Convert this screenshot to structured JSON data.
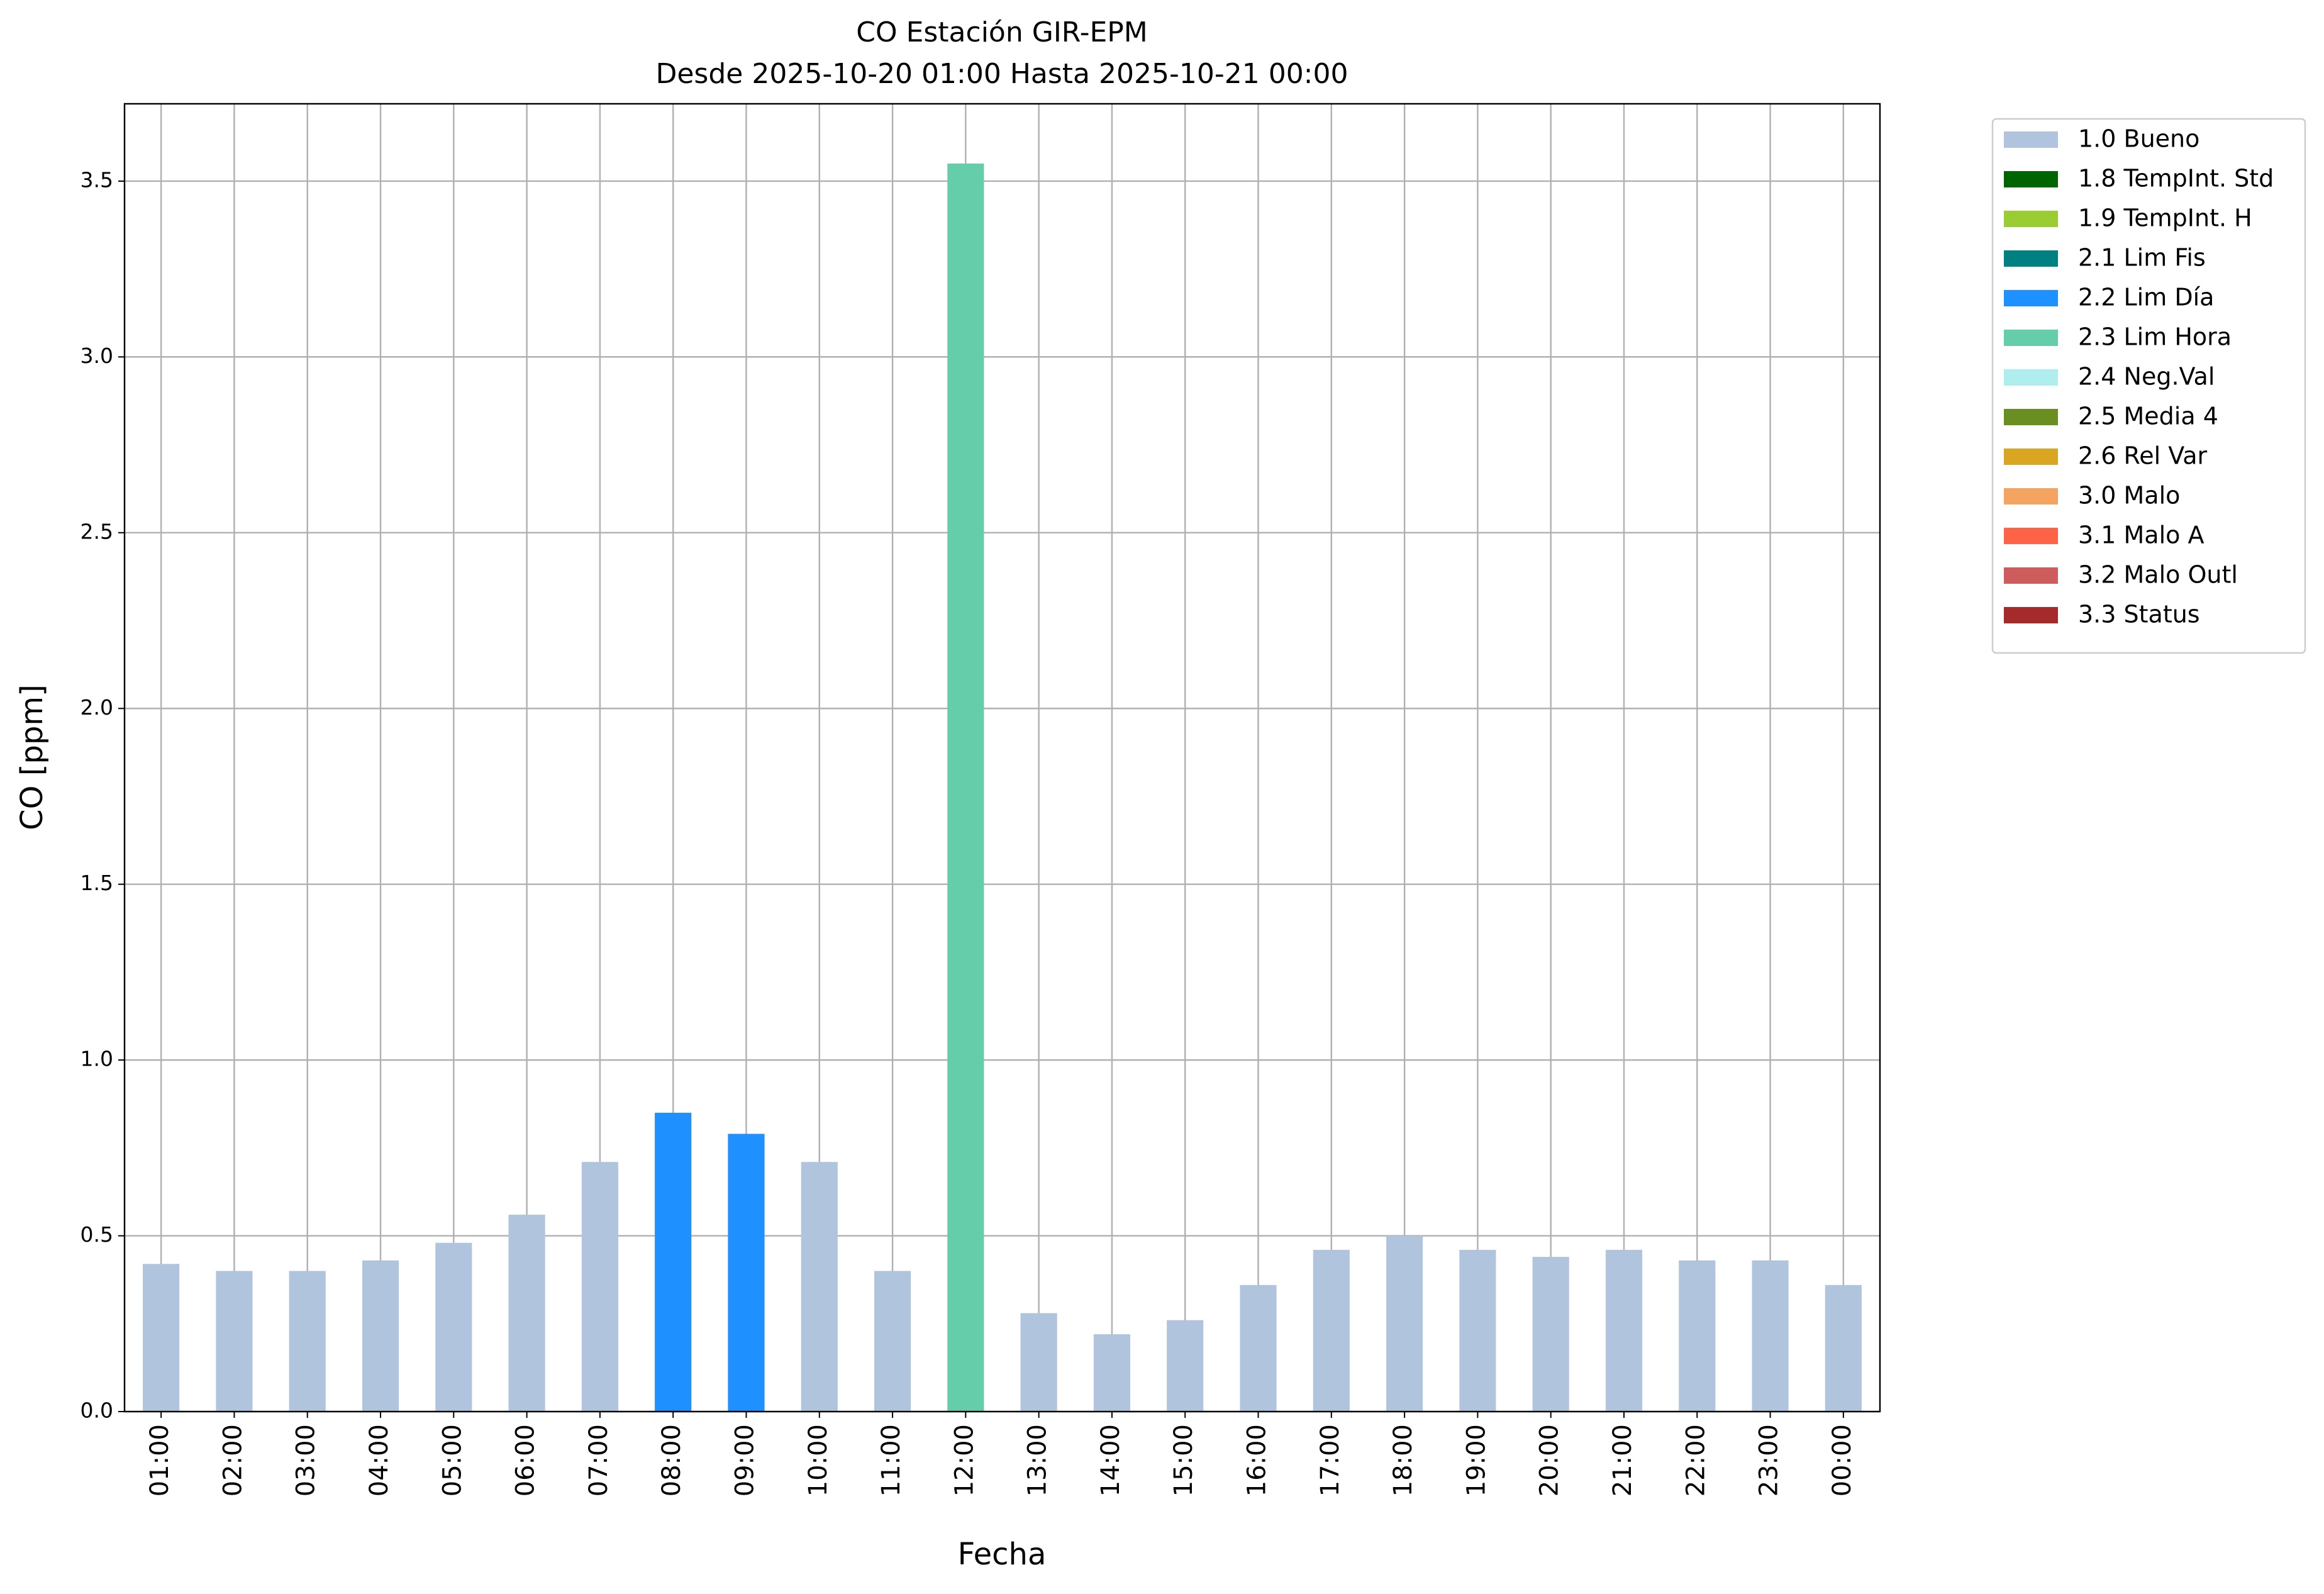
{
  "chart_data": {
    "type": "bar",
    "title": "CO Estación GIR-EPM",
    "subtitle": "Desde 2025-10-20 01:00 Hasta 2025-10-21 00:00",
    "x_label": "Fecha",
    "y_label": "CO [ppm]",
    "categories": [
      "01:00",
      "02:00",
      "03:00",
      "04:00",
      "05:00",
      "06:00",
      "07:00",
      "08:00",
      "09:00",
      "10:00",
      "11:00",
      "12:00",
      "13:00",
      "14:00",
      "15:00",
      "16:00",
      "17:00",
      "18:00",
      "19:00",
      "20:00",
      "21:00",
      "22:00",
      "23:00",
      "00:00"
    ],
    "series": [
      {
        "name": "1.0 Bueno",
        "color": "#b0c4de",
        "values": [
          0.42,
          0.4,
          0.4,
          0.43,
          0.48,
          0.56,
          0.71,
          null,
          null,
          0.71,
          0.4,
          null,
          0.28,
          0.22,
          0.26,
          0.36,
          0.46,
          0.5,
          0.46,
          0.44,
          0.46,
          0.43,
          0.43,
          0.36
        ]
      },
      {
        "name": "1.8 TempInt. Std",
        "color": "#006400",
        "values": [
          null,
          null,
          null,
          null,
          null,
          null,
          null,
          null,
          null,
          null,
          null,
          null,
          null,
          null,
          null,
          null,
          null,
          null,
          null,
          null,
          null,
          null,
          null,
          null
        ]
      },
      {
        "name": "1.9 TempInt. H",
        "color": "#9acd32",
        "values": [
          null,
          null,
          null,
          null,
          null,
          null,
          null,
          null,
          null,
          null,
          null,
          null,
          null,
          null,
          null,
          null,
          null,
          null,
          null,
          null,
          null,
          null,
          null,
          null
        ]
      },
      {
        "name": "2.1 Lim Fis",
        "color": "#008080",
        "values": [
          null,
          null,
          null,
          null,
          null,
          null,
          null,
          null,
          null,
          null,
          null,
          null,
          null,
          null,
          null,
          null,
          null,
          null,
          null,
          null,
          null,
          null,
          null,
          null
        ]
      },
      {
        "name": "2.2 Lim Día",
        "color": "#1e90ff",
        "values": [
          null,
          null,
          null,
          null,
          null,
          null,
          null,
          0.85,
          0.79,
          null,
          null,
          null,
          null,
          null,
          null,
          null,
          null,
          null,
          null,
          null,
          null,
          null,
          null,
          null
        ]
      },
      {
        "name": "2.3 Lim Hora",
        "color": "#66cdaa",
        "values": [
          null,
          null,
          null,
          null,
          null,
          null,
          null,
          null,
          null,
          null,
          null,
          3.55,
          null,
          null,
          null,
          null,
          null,
          null,
          null,
          null,
          null,
          null,
          null,
          null
        ]
      },
      {
        "name": "2.4 Neg.Val",
        "color": "#afeeee",
        "values": [
          null,
          null,
          null,
          null,
          null,
          null,
          null,
          null,
          null,
          null,
          null,
          null,
          null,
          null,
          null,
          null,
          null,
          null,
          null,
          null,
          null,
          null,
          null,
          null
        ]
      },
      {
        "name": "2.5 Media 4",
        "color": "#6b8e23",
        "values": [
          null,
          null,
          null,
          null,
          null,
          null,
          null,
          null,
          null,
          null,
          null,
          null,
          null,
          null,
          null,
          null,
          null,
          null,
          null,
          null,
          null,
          null,
          null,
          null
        ]
      },
      {
        "name": "2.6 Rel Var",
        "color": "#daa520",
        "values": [
          null,
          null,
          null,
          null,
          null,
          null,
          null,
          null,
          null,
          null,
          null,
          null,
          null,
          null,
          null,
          null,
          null,
          null,
          null,
          null,
          null,
          null,
          null,
          null
        ]
      },
      {
        "name": "3.0 Malo",
        "color": "#f4a460",
        "values": [
          null,
          null,
          null,
          null,
          null,
          null,
          null,
          null,
          null,
          null,
          null,
          null,
          null,
          null,
          null,
          null,
          null,
          null,
          null,
          null,
          null,
          null,
          null,
          null
        ]
      },
      {
        "name": "3.1 Malo A",
        "color": "#ff6347",
        "values": [
          null,
          null,
          null,
          null,
          null,
          null,
          null,
          null,
          null,
          null,
          null,
          null,
          null,
          null,
          null,
          null,
          null,
          null,
          null,
          null,
          null,
          null,
          null,
          null
        ]
      },
      {
        "name": "3.2 Malo Outl",
        "color": "#cd5c5c",
        "values": [
          null,
          null,
          null,
          null,
          null,
          null,
          null,
          null,
          null,
          null,
          null,
          null,
          null,
          null,
          null,
          null,
          null,
          null,
          null,
          null,
          null,
          null,
          null,
          null
        ]
      },
      {
        "name": "3.3 Status",
        "color": "#a52a2a",
        "values": [
          null,
          null,
          null,
          null,
          null,
          null,
          null,
          null,
          null,
          null,
          null,
          null,
          null,
          null,
          null,
          null,
          null,
          null,
          null,
          null,
          null,
          null,
          null,
          null
        ]
      }
    ],
    "ylim": [
      0,
      3.72
    ],
    "yticks": [
      {
        "value": 0,
        "label": "0.0"
      },
      0.5,
      {
        "value": 1,
        "label": "1.0"
      },
      1.5,
      {
        "value": 2,
        "label": "2.0"
      },
      2.5,
      {
        "value": 3,
        "label": "3.0"
      },
      3.5
    ],
    "grid": true,
    "legend": "outside right"
  }
}
